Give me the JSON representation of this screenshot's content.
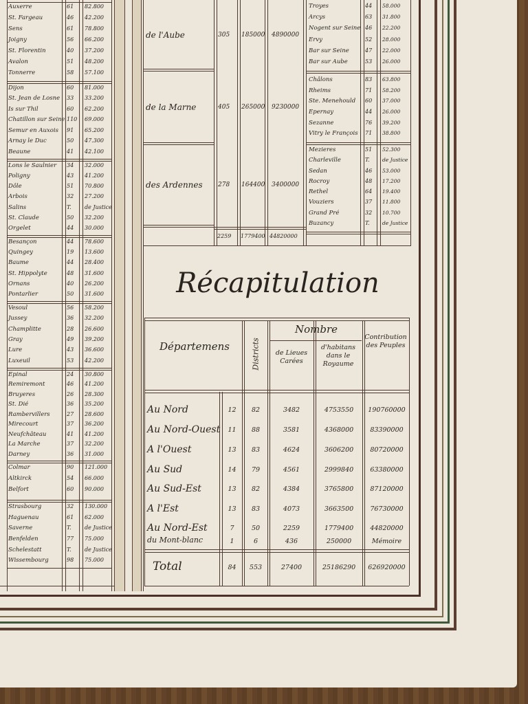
{
  "left_groups": [
    {
      "rows": [
        {
          "town": "Auxerre",
          "flag": true,
          "n1": "61",
          "n2": "82.800"
        },
        {
          "town": "St. Fargeau",
          "n1": "46",
          "n2": "42.200"
        },
        {
          "town": "Sens",
          "cross": true,
          "n1": "61",
          "n2": "78.800"
        },
        {
          "town": "Joigny",
          "n1": "56",
          "n2": "66.200"
        },
        {
          "town": "St. Florentin",
          "n1": "40",
          "n2": "37.200"
        },
        {
          "town": "Avalon",
          "n1": "51",
          "n2": "48.200"
        },
        {
          "town": "Tonnerre",
          "n1": "58",
          "n2": "57.100"
        }
      ]
    },
    {
      "rows": [
        {
          "town": "Dijon",
          "flag": true,
          "n1": "60",
          "n2": "81.000"
        },
        {
          "town": "St. Jean de Losne",
          "n1": "33",
          "n2": "33.200"
        },
        {
          "town": "Is sur Thil",
          "n1": "60",
          "n2": "62.200"
        },
        {
          "town": "Chatillon sur Seine",
          "n1": "110",
          "n2": "69.000"
        },
        {
          "town": "Semur en Auxois",
          "n1": "91",
          "n2": "65.200"
        },
        {
          "town": "Arnay le Duc",
          "n1": "50",
          "n2": "47.300"
        },
        {
          "town": "Beaune",
          "n1": "41",
          "n2": "42.100"
        }
      ]
    },
    {
      "rows": [
        {
          "town": "Lons le Saulnier",
          "flag": true,
          "n1": "34",
          "n2": "32.000"
        },
        {
          "town": "Poligny",
          "n1": "43",
          "n2": "41.200"
        },
        {
          "town": "Dôle",
          "n1": "51",
          "n2": "70.800"
        },
        {
          "town": "Arbois",
          "n1": "32",
          "n2": "27.200"
        },
        {
          "town": "Salins",
          "n1": "T.",
          "n2": "de Justice"
        },
        {
          "town": "St. Claude",
          "cross": true,
          "n1": "50",
          "n2": "32.200"
        },
        {
          "town": "Orgelet",
          "n1": "44",
          "n2": "30.000"
        }
      ]
    },
    {
      "rows": [
        {
          "town": "Besançon",
          "flag": true,
          "n1": "44",
          "n2": "78.600"
        },
        {
          "town": "Quingey",
          "n1": "19",
          "n2": "13.600"
        },
        {
          "town": "Baume",
          "n1": "44",
          "n2": "28.400"
        },
        {
          "town": "St. Hippolyte",
          "n1": "48",
          "n2": "31.600"
        },
        {
          "town": "Ornans",
          "n1": "40",
          "n2": "26.200"
        },
        {
          "town": "Pontarlier",
          "n1": "50",
          "n2": "31.600"
        }
      ]
    },
    {
      "rows": [
        {
          "town": "Vesoul",
          "flag": true,
          "n1": "56",
          "n2": "58.200"
        },
        {
          "town": "Jussey",
          "n1": "36",
          "n2": "32.200"
        },
        {
          "town": "Champlitte",
          "n1": "28",
          "n2": "26.600"
        },
        {
          "town": "Gray",
          "n1": "49",
          "n2": "39.200"
        },
        {
          "town": "Lure",
          "n1": "43",
          "n2": "36.600"
        },
        {
          "town": "Luxeuil",
          "n1": "53",
          "n2": "42.200"
        }
      ]
    },
    {
      "rows": [
        {
          "town": "Epinal",
          "flag": true,
          "n1": "24",
          "n2": "30.800"
        },
        {
          "town": "Remiremont",
          "n1": "46",
          "n2": "41.200"
        },
        {
          "town": "Bruyeres",
          "n1": "26",
          "n2": "28.300"
        },
        {
          "town": "St. Dié",
          "cross": true,
          "n1": "36",
          "n2": "35.200"
        },
        {
          "town": "Rambervillers",
          "n1": "27",
          "n2": "28.600"
        },
        {
          "town": "Mirecourt",
          "n1": "37",
          "n2": "36.200"
        },
        {
          "town": "Neufchâteau",
          "n1": "41",
          "n2": "41.200"
        },
        {
          "town": "La Marche",
          "n1": "37",
          "n2": "32.200"
        },
        {
          "town": "Darney",
          "n1": "36",
          "n2": "31.000"
        }
      ]
    },
    {
      "rows": [
        {
          "town": "Colmar",
          "flag": true,
          "n1": "90",
          "n2": "121.000"
        },
        {
          "town": "Altkirck",
          "n1": "54",
          "n2": "66.000"
        },
        {
          "town": "Belfort",
          "n1": "60",
          "n2": "90.000"
        }
      ]
    },
    {
      "rows": [
        {
          "town": "Strasbourg",
          "flag": true,
          "n1": "32",
          "n2": "130.000"
        },
        {
          "town": "Haguenau",
          "n1": "61",
          "n2": "62.000"
        },
        {
          "town": "Saverne",
          "cross": true,
          "n1": "T.",
          "n2": "de Justice"
        },
        {
          "town": "Benfelden",
          "n1": "77",
          "n2": "75.000"
        },
        {
          "town": "Schelestatt",
          "n1": "T.",
          "n2": "de Justice"
        },
        {
          "town": "Wissembourg",
          "n1": "98",
          "n2": "75.000"
        }
      ]
    }
  ],
  "mid_rows": [
    {
      "name": "de l'Aube",
      "d": "305",
      "h": "185000",
      "c": "4890000"
    },
    {
      "name": "de la Marne",
      "d": "405",
      "h": "265000",
      "c": "9230000"
    },
    {
      "name": "des Ardennes",
      "d": "278",
      "h": "164400",
      "c": "3400000"
    }
  ],
  "mid_totals": {
    "d": "2259",
    "h": "1779400",
    "c": "44820000"
  },
  "right_groups": [
    {
      "rows": [
        {
          "town": "Troyes",
          "flag": true,
          "n1": "44",
          "n2": "58.000"
        },
        {
          "town": "Arcys",
          "n1": "63",
          "n2": "31.800"
        },
        {
          "town": "Nogent sur Seine",
          "n1": "46",
          "n2": "22.200"
        },
        {
          "town": "Ervy",
          "n1": "52",
          "n2": "28.000"
        },
        {
          "town": "Bar sur Seine",
          "n1": "47",
          "n2": "22.000"
        },
        {
          "town": "Bar sur Aube",
          "n1": "53",
          "n2": "26.000"
        }
      ]
    },
    {
      "rows": [
        {
          "town": "Châlons",
          "flag": true,
          "n1": "83",
          "n2": "63.800"
        },
        {
          "town": "Rheims",
          "cross": true,
          "n1": "71",
          "n2": "58.200"
        },
        {
          "town": "Ste. Menehould",
          "n1": "60",
          "n2": "37.000"
        },
        {
          "town": "Epernay",
          "n1": "44",
          "n2": "26.000"
        },
        {
          "town": "Sezanne",
          "n1": "76",
          "n2": "39.200"
        },
        {
          "town": "Vitry le François",
          "n1": "71",
          "n2": "38.800"
        }
      ]
    },
    {
      "rows": [
        {
          "town": "Mezieres",
          "flag": true,
          "n1": "51",
          "n2": "52.300"
        },
        {
          "town": "Charleville",
          "n1": "T.",
          "n2": "de Justice"
        },
        {
          "town": "Sedan",
          "cross": true,
          "n1": "46",
          "n2": "53.000"
        },
        {
          "town": "Rocroy",
          "n1": "48",
          "n2": "17.200"
        },
        {
          "town": "Rethel",
          "n1": "64",
          "n2": "19.400"
        },
        {
          "town": "Vouziers",
          "n1": "37",
          "n2": "11.800"
        },
        {
          "town": "Grand Pré",
          "n1": "32",
          "n2": "10.700"
        },
        {
          "town": "Buzancy",
          "n1": "T.",
          "n2": "de Justice"
        }
      ]
    }
  ],
  "recap": {
    "title": "Récapitulation",
    "headers": {
      "departements": "Départemens",
      "districts": "Districts",
      "nombre": "Nombre",
      "lieues": "de Lieues Carées",
      "habitans": "d'habitans dans le Royaume",
      "contribution": "Contribution des Peuples"
    },
    "rows": [
      {
        "region": "Au Nord",
        "dep": "12",
        "dist": "82",
        "lieues": "3482",
        "hab": "4753550",
        "contrib": "190760000"
      },
      {
        "region": "Au Nord-Ouest",
        "dep": "11",
        "dist": "88",
        "lieues": "3581",
        "hab": "4368000",
        "contrib": "83390000"
      },
      {
        "region": "A l'Ouest",
        "dep": "13",
        "dist": "83",
        "lieues": "4624",
        "hab": "3606200",
        "contrib": "80720000"
      },
      {
        "region": "Au Sud",
        "dep": "14",
        "dist": "79",
        "lieues": "4561",
        "hab": "2999840",
        "contrib": "63380000"
      },
      {
        "region": "Au Sud-Est",
        "dep": "13",
        "dist": "82",
        "lieues": "4384",
        "hab": "3765800",
        "contrib": "87120000"
      },
      {
        "region": "A l'Est",
        "dep": "13",
        "dist": "83",
        "lieues": "4073",
        "hab": "3663500",
        "contrib": "76730000"
      },
      {
        "region": "Au Nord-Est",
        "dep": "7",
        "dist": "50",
        "lieues": "2259",
        "hab": "1779400",
        "contrib": "44820000"
      },
      {
        "region": "du Mont-blanc",
        "dep": "1",
        "dist": "6",
        "lieues": "436",
        "hab": "250000",
        "contrib": "Mémoire"
      }
    ],
    "total": {
      "label": "Total",
      "dep": "84",
      "dist": "553",
      "lieues": "27400",
      "hab": "25186290",
      "contrib": "626920000"
    }
  },
  "colors": {
    "ink": "#2a2420",
    "paper": "#ece7da",
    "rule": "#4d3a2e",
    "frame_brown": "#5a3e30",
    "frame_green": "#3f5a3a"
  }
}
